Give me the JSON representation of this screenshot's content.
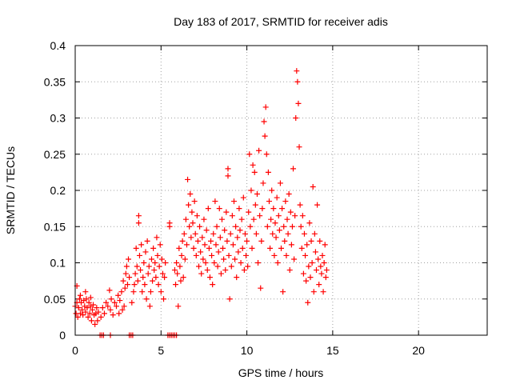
{
  "chart_data": {
    "type": "scatter",
    "title": "Day 183 of 2017, SRMTID for receiver adis",
    "xlabel": "GPS time / hours",
    "ylabel": "SRMTID / TECUs",
    "xlim": [
      0,
      24
    ],
    "ylim": [
      0,
      0.4
    ],
    "x_ticks": [
      0,
      5,
      10,
      15,
      20
    ],
    "x_tick_labels": [
      "0",
      "5",
      "10",
      "15",
      "20"
    ],
    "y_ticks": [
      0,
      0.05,
      0.1,
      0.15,
      0.2,
      0.25,
      0.3,
      0.35,
      0.4
    ],
    "y_tick_labels": [
      "0",
      "0.05",
      "0.1",
      "0.15",
      "0.2",
      "0.25",
      "0.3",
      "0.35",
      "0.4"
    ],
    "grid": true,
    "marker": "plus",
    "color": "#ff0000",
    "series": [
      {
        "points": [
          [
            0.0,
            0.04
          ],
          [
            0.05,
            0.03
          ],
          [
            0.1,
            0.045
          ],
          [
            0.1,
            0.068
          ],
          [
            0.15,
            0.025
          ],
          [
            0.2,
            0.038
          ],
          [
            0.25,
            0.05
          ],
          [
            0.3,
            0.03
          ],
          [
            0.35,
            0.045
          ],
          [
            0.4,
            0.035
          ],
          [
            0.45,
            0.028
          ],
          [
            0.5,
            0.048
          ],
          [
            0.55,
            0.04
          ],
          [
            0.6,
            0.032
          ],
          [
            0.65,
            0.05
          ],
          [
            0.7,
            0.038
          ],
          [
            0.75,
            0.025
          ],
          [
            0.8,
            0.045
          ],
          [
            0.85,
            0.03
          ],
          [
            0.9,
            0.04
          ],
          [
            0.95,
            0.02
          ],
          [
            1.0,
            0.035
          ],
          [
            1.05,
            0.042
          ],
          [
            1.1,
            0.028
          ],
          [
            1.15,
            0.015
          ],
          [
            1.2,
            0.03
          ],
          [
            1.25,
            0.038
          ],
          [
            1.3,
            0.02
          ],
          [
            1.35,
            0.032
          ],
          [
            0.3,
            0.055
          ],
          [
            0.6,
            0.06
          ],
          [
            0.9,
            0.052
          ],
          [
            1.5,
            0.025
          ],
          [
            1.6,
            0.038
          ],
          [
            1.7,
            0.03
          ],
          [
            1.8,
            0.045
          ],
          [
            1.9,
            0.04
          ],
          [
            2.0,
            0.062
          ],
          [
            2.05,
            0.035
          ],
          [
            2.1,
            0.05
          ],
          [
            2.2,
            0.028
          ],
          [
            2.3,
            0.045
          ],
          [
            2.4,
            0.04
          ],
          [
            2.5,
            0.055
          ],
          [
            2.6,
            0.048
          ],
          [
            2.7,
            0.06
          ],
          [
            2.75,
            0.035
          ],
          [
            2.8,
            0.075
          ],
          [
            2.9,
            0.065
          ],
          [
            2.95,
            0.085
          ],
          [
            3.0,
            0.095
          ],
          [
            3.05,
            0.07
          ],
          [
            3.1,
            0.105
          ],
          [
            3.15,
            0.08
          ],
          [
            2.85,
            0.04
          ],
          [
            2.55,
            0.03
          ],
          [
            3.3,
            0.045
          ],
          [
            3.4,
            0.06
          ],
          [
            3.45,
            0.07
          ],
          [
            3.5,
            0.085
          ],
          [
            3.55,
            0.12
          ],
          [
            3.6,
            0.095
          ],
          [
            3.65,
            0.075
          ],
          [
            3.7,
            0.165
          ],
          [
            3.7,
            0.155
          ],
          [
            3.75,
            0.11
          ],
          [
            3.8,
            0.09
          ],
          [
            3.85,
            0.125
          ],
          [
            3.9,
            0.06
          ],
          [
            3.95,
            0.08
          ],
          [
            4.0,
            0.1
          ],
          [
            4.05,
            0.07
          ],
          [
            4.1,
            0.115
          ],
          [
            4.15,
            0.05
          ],
          [
            4.2,
            0.13
          ],
          [
            4.25,
            0.085
          ],
          [
            4.3,
            0.095
          ],
          [
            4.35,
            0.04
          ],
          [
            4.4,
            0.06
          ],
          [
            4.45,
            0.105
          ],
          [
            4.5,
            0.075
          ],
          [
            4.55,
            0.12
          ],
          [
            4.6,
            0.09
          ],
          [
            4.65,
            0.1
          ],
          [
            4.7,
            0.08
          ],
          [
            4.75,
            0.135
          ],
          [
            4.8,
            0.11
          ],
          [
            4.85,
            0.07
          ],
          [
            4.9,
            0.095
          ],
          [
            4.95,
            0.125
          ],
          [
            5.0,
            0.06
          ],
          [
            5.05,
            0.105
          ],
          [
            5.1,
            0.085
          ],
          [
            5.15,
            0.05
          ],
          [
            5.2,
            0.08
          ],
          [
            5.25,
            0.1
          ],
          [
            5.5,
            0.15
          ],
          [
            5.5,
            0.155
          ],
          [
            5.8,
            0.09
          ],
          [
            5.85,
            0.07
          ],
          [
            5.9,
            0.1
          ],
          [
            5.95,
            0.085
          ],
          [
            6.0,
            0.04
          ],
          [
            6.05,
            0.12
          ],
          [
            6.1,
            0.095
          ],
          [
            6.15,
            0.075
          ],
          [
            6.2,
            0.11
          ],
          [
            6.25,
            0.13
          ],
          [
            6.3,
            0.08
          ],
          [
            6.35,
            0.14
          ],
          [
            6.4,
            0.105
          ],
          [
            6.45,
            0.16
          ],
          [
            6.5,
            0.125
          ],
          [
            6.55,
            0.215
          ],
          [
            6.6,
            0.18
          ],
          [
            6.65,
            0.15
          ],
          [
            6.7,
            0.195
          ],
          [
            6.75,
            0.135
          ],
          [
            6.8,
            0.17
          ],
          [
            6.85,
            0.155
          ],
          [
            6.9,
            0.12
          ],
          [
            6.95,
            0.185
          ],
          [
            7.0,
            0.14
          ],
          [
            7.05,
            0.11
          ],
          [
            7.1,
            0.165
          ],
          [
            7.15,
            0.13
          ],
          [
            7.2,
            0.095
          ],
          [
            7.25,
            0.15
          ],
          [
            7.3,
            0.115
          ],
          [
            7.35,
            0.085
          ],
          [
            7.4,
            0.135
          ],
          [
            7.45,
            0.105
          ],
          [
            7.5,
            0.16
          ],
          [
            7.55,
            0.125
          ],
          [
            7.6,
            0.1
          ],
          [
            7.65,
            0.145
          ],
          [
            7.7,
            0.09
          ],
          [
            7.75,
            0.175
          ],
          [
            7.8,
            0.12
          ],
          [
            7.85,
            0.08
          ],
          [
            7.9,
            0.13
          ],
          [
            7.95,
            0.11
          ],
          [
            8.0,
            0.07
          ],
          [
            8.05,
            0.14
          ],
          [
            8.1,
            0.1
          ],
          [
            8.15,
            0.185
          ],
          [
            8.2,
            0.125
          ],
          [
            8.25,
            0.15
          ],
          [
            8.3,
            0.095
          ],
          [
            8.35,
            0.115
          ],
          [
            8.4,
            0.175
          ],
          [
            8.45,
            0.135
          ],
          [
            8.5,
            0.085
          ],
          [
            8.55,
            0.16
          ],
          [
            8.6,
            0.12
          ],
          [
            8.65,
            0.105
          ],
          [
            8.7,
            0.145
          ],
          [
            8.75,
            0.09
          ],
          [
            8.8,
            0.17
          ],
          [
            8.85,
            0.13
          ],
          [
            8.9,
            0.23
          ],
          [
            8.9,
            0.22
          ],
          [
            8.95,
            0.11
          ],
          [
            9.0,
            0.05
          ],
          [
            9.05,
            0.14
          ],
          [
            9.1,
            0.095
          ],
          [
            9.15,
            0.165
          ],
          [
            9.2,
            0.125
          ],
          [
            9.25,
            0.185
          ],
          [
            9.3,
            0.105
          ],
          [
            9.35,
            0.15
          ],
          [
            9.4,
            0.08
          ],
          [
            9.45,
            0.135
          ],
          [
            9.5,
            0.115
          ],
          [
            9.55,
            0.175
          ],
          [
            9.6,
            0.145
          ],
          [
            9.65,
            0.1
          ],
          [
            9.7,
            0.16
          ],
          [
            9.75,
            0.12
          ],
          [
            9.8,
            0.19
          ],
          [
            9.85,
            0.09
          ],
          [
            9.9,
            0.14
          ],
          [
            9.95,
            0.11
          ],
          [
            10.0,
            0.13
          ],
          [
            10.05,
            0.095
          ],
          [
            10.1,
            0.17
          ],
          [
            10.15,
            0.25
          ],
          [
            10.2,
            0.15
          ],
          [
            10.25,
            0.2
          ],
          [
            10.3,
            0.12
          ],
          [
            10.35,
            0.235
          ],
          [
            10.4,
            0.16
          ],
          [
            10.45,
            0.225
          ],
          [
            10.5,
            0.18
          ],
          [
            10.55,
            0.14
          ],
          [
            10.6,
            0.195
          ],
          [
            10.65,
            0.1
          ],
          [
            10.7,
            0.255
          ],
          [
            10.75,
            0.165
          ],
          [
            10.8,
            0.065
          ],
          [
            10.85,
            0.13
          ],
          [
            10.9,
            0.175
          ],
          [
            10.95,
            0.21
          ],
          [
            11.0,
            0.295
          ],
          [
            11.05,
            0.275
          ],
          [
            11.1,
            0.315
          ],
          [
            11.15,
            0.25
          ],
          [
            11.2,
            0.15
          ],
          [
            11.25,
            0.225
          ],
          [
            11.3,
            0.185
          ],
          [
            11.35,
            0.12
          ],
          [
            11.4,
            0.16
          ],
          [
            11.45,
            0.2
          ],
          [
            11.5,
            0.14
          ],
          [
            11.55,
            0.175
          ],
          [
            11.6,
            0.11
          ],
          [
            11.65,
            0.155
          ],
          [
            11.7,
            0.135
          ],
          [
            11.75,
            0.19
          ],
          [
            11.8,
            0.1
          ],
          [
            11.85,
            0.165
          ],
          [
            11.9,
            0.145
          ],
          [
            11.95,
            0.21
          ],
          [
            12.0,
            0.12
          ],
          [
            12.05,
            0.175
          ],
          [
            12.1,
            0.06
          ],
          [
            12.15,
            0.15
          ],
          [
            12.2,
            0.13
          ],
          [
            12.25,
            0.185
          ],
          [
            12.3,
            0.11
          ],
          [
            12.35,
            0.16
          ],
          [
            12.4,
            0.14
          ],
          [
            12.45,
            0.195
          ],
          [
            12.5,
            0.09
          ],
          [
            12.55,
            0.17
          ],
          [
            12.6,
            0.125
          ],
          [
            12.65,
            0.15
          ],
          [
            12.7,
            0.23
          ],
          [
            12.75,
            0.105
          ],
          [
            12.8,
            0.165
          ],
          [
            12.85,
            0.3
          ],
          [
            12.9,
            0.365
          ],
          [
            12.95,
            0.35
          ],
          [
            13.0,
            0.32
          ],
          [
            13.05,
            0.26
          ],
          [
            13.1,
            0.18
          ],
          [
            13.15,
            0.15
          ],
          [
            13.2,
            0.12
          ],
          [
            13.25,
            0.165
          ],
          [
            13.3,
            0.085
          ],
          [
            13.35,
            0.14
          ],
          [
            13.4,
            0.11
          ],
          [
            13.45,
            0.075
          ],
          [
            13.5,
            0.125
          ],
          [
            13.55,
            0.045
          ],
          [
            13.6,
            0.095
          ],
          [
            13.65,
            0.155
          ],
          [
            13.7,
            0.08
          ],
          [
            13.75,
            0.13
          ],
          [
            13.8,
            0.1
          ],
          [
            13.85,
            0.205
          ],
          [
            13.9,
            0.06
          ],
          [
            13.95,
            0.14
          ],
          [
            14.0,
            0.115
          ],
          [
            14.05,
            0.09
          ],
          [
            14.1,
            0.18
          ],
          [
            14.15,
            0.105
          ],
          [
            14.2,
            0.07
          ],
          [
            14.25,
            0.13
          ],
          [
            14.3,
            0.095
          ],
          [
            14.35,
            0.085
          ],
          [
            14.4,
            0.11
          ],
          [
            14.45,
            0.06
          ],
          [
            14.5,
            0.1
          ],
          [
            14.55,
            0.125
          ],
          [
            14.6,
            0.08
          ],
          [
            14.65,
            0.09
          ],
          [
            1.45,
            0.0
          ],
          [
            1.55,
            0.0
          ],
          [
            1.65,
            0.0
          ],
          [
            2.05,
            0.0
          ],
          [
            3.15,
            0.0
          ],
          [
            3.25,
            0.0
          ],
          [
            3.35,
            0.0
          ],
          [
            5.4,
            0.0
          ],
          [
            5.5,
            0.0
          ],
          [
            5.6,
            0.0
          ],
          [
            5.7,
            0.0
          ],
          [
            5.8,
            0.0
          ],
          [
            5.9,
            0.0
          ]
        ]
      }
    ]
  }
}
